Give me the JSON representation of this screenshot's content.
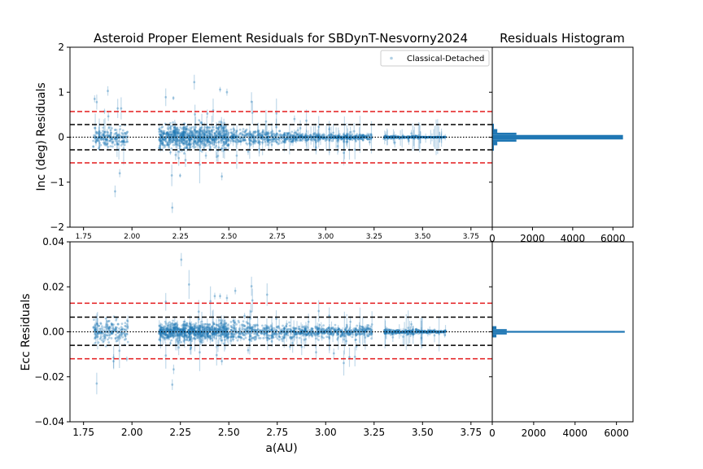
{
  "chart_data": [
    {
      "type": "scatter",
      "title": "Asteroid Proper Element Residuals for SBDynT-Nesvorny2024",
      "ylabel": "Inc (deg) Residuals",
      "xlabel": "",
      "xlim": [
        1.68,
        3.86
      ],
      "ylim": [
        -2,
        2
      ],
      "xticks": [
        "1.75",
        "2.00",
        "2.25",
        "2.50",
        "2.75",
        "3.00",
        "3.25",
        "3.50",
        "3.75"
      ],
      "yticks": [
        "2",
        "1",
        "0",
        "−1",
        "−2"
      ],
      "ytick_values": [
        2,
        1,
        0,
        -1,
        -2
      ],
      "legend": {
        "label": "Classical-Detached",
        "placement": "top-right"
      },
      "reference_lines": {
        "dotted": 0,
        "black_dashed": [
          0.28,
          -0.28
        ],
        "red_dashed": [
          0.57,
          -0.57
        ]
      },
      "grid": false,
      "point_color": "#1f77b4",
      "clusters": [
        {
          "x_range": [
            1.8,
            1.98
          ],
          "spread": 0.1
        },
        {
          "x_range": [
            2.14,
            2.5
          ],
          "spread": 0.12
        },
        {
          "x_range": [
            2.51,
            2.83
          ],
          "spread": 0.07
        },
        {
          "x_range": [
            2.83,
            2.95
          ],
          "spread": 0.04
        },
        {
          "x_range": [
            2.95,
            3.24
          ],
          "spread": 0.03
        },
        {
          "x_range": [
            3.3,
            3.48
          ],
          "spread": 0.015
        },
        {
          "x_range": [
            3.48,
            3.62
          ],
          "spread": 0.005
        }
      ]
    },
    {
      "type": "bar",
      "title": "Residuals Histogram",
      "orientation": "horizontal",
      "xlim": [
        0,
        7000
      ],
      "ylim": [
        -2,
        2
      ],
      "xticks": [
        "0",
        "2000",
        "4000",
        "6000"
      ],
      "xtick_values": [
        0,
        2000,
        4000,
        6000
      ],
      "bins": [
        {
          "y0": -0.05,
          "y1": 0.05,
          "count": 6500
        },
        {
          "y0": 0.05,
          "y1": 0.1,
          "count": 1200
        },
        {
          "y0": -0.1,
          "y1": -0.05,
          "count": 1200
        },
        {
          "y0": 0.1,
          "y1": 0.18,
          "count": 250
        },
        {
          "y0": -0.18,
          "y1": -0.1,
          "count": 250
        },
        {
          "y0": 0.18,
          "y1": 0.3,
          "count": 80
        },
        {
          "y0": -0.3,
          "y1": -0.18,
          "count": 80
        }
      ]
    },
    {
      "type": "scatter",
      "title": "",
      "ylabel": "Ecc Residuals",
      "xlabel": "a(AU)",
      "xlim": [
        1.68,
        3.86
      ],
      "ylim": [
        -0.04,
        0.04
      ],
      "xticks": [
        "1.75",
        "2.00",
        "2.25",
        "2.50",
        "2.75",
        "3.00",
        "3.25",
        "3.50",
        "3.75"
      ],
      "yticks": [
        "0.04",
        "0.02",
        "0.00",
        "−0.02",
        "−0.04"
      ],
      "ytick_values": [
        0.04,
        0.02,
        0,
        -0.02,
        -0.04
      ],
      "reference_lines": {
        "dotted": 0,
        "black_dashed": [
          0.0065,
          -0.006
        ],
        "red_dashed": [
          0.0127,
          -0.012
        ]
      },
      "grid": false,
      "point_color": "#1f77b4",
      "clusters": [
        {
          "x_range": [
            1.8,
            1.98
          ],
          "spread": 0.0025
        },
        {
          "x_range": [
            2.14,
            2.5
          ],
          "spread": 0.0018
        },
        {
          "x_range": [
            2.51,
            2.83
          ],
          "spread": 0.0018
        },
        {
          "x_range": [
            2.83,
            2.95
          ],
          "spread": 0.001
        },
        {
          "x_range": [
            2.95,
            3.24
          ],
          "spread": 0.0012
        },
        {
          "x_range": [
            3.3,
            3.48
          ],
          "spread": 0.0006
        },
        {
          "x_range": [
            3.48,
            3.62
          ],
          "spread": 0.0003
        }
      ]
    },
    {
      "type": "bar",
      "title": "",
      "orientation": "horizontal",
      "xlim": [
        0,
        6800
      ],
      "ylim": [
        -0.04,
        0.04
      ],
      "xticks": [
        "0",
        "2000",
        "4000",
        "6000"
      ],
      "xtick_values": [
        0,
        2000,
        4000,
        6000
      ],
      "bins": [
        {
          "y0": -0.0004,
          "y1": 0.0004,
          "count": 6400
        },
        {
          "y0": 0.0004,
          "y1": 0.0012,
          "count": 700
        },
        {
          "y0": -0.0012,
          "y1": -0.0004,
          "count": 700
        },
        {
          "y0": 0.0012,
          "y1": 0.0025,
          "count": 200
        },
        {
          "y0": -0.0025,
          "y1": -0.0012,
          "count": 200
        }
      ]
    }
  ]
}
